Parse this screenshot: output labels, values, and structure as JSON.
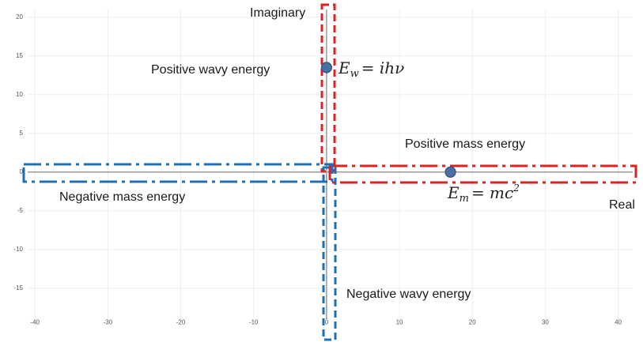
{
  "chart_data": {
    "type": "scatter",
    "x_ticks": [
      -40,
      -30,
      -20,
      -10,
      0,
      10,
      20,
      30,
      40
    ],
    "y_ticks": [
      -15,
      -10,
      -5,
      0,
      5,
      10,
      15,
      20
    ],
    "xlim": [
      -41,
      42
    ],
    "ylim": [
      -19,
      21
    ],
    "grid": true,
    "points": [
      {
        "x": 0,
        "y": 13.5
      },
      {
        "x": 17,
        "y": 0
      }
    ],
    "point_color": "#4a6fa5",
    "axis_labels": {
      "real": "Real",
      "imaginary": "Imaginary"
    },
    "annotations": {
      "positive_wavy": "Positive wavy energy",
      "negative_wavy": "Negative wavy energy",
      "positive_mass": "Positive mass energy",
      "negative_mass": "Negative mass energy"
    },
    "formulas": {
      "wavy": {
        "lhs": "E",
        "sub": "w",
        "rhs": "= ihν"
      },
      "mass": {
        "lhs": "E",
        "sub": "m",
        "rhs": "= mc",
        "sup": "2"
      }
    },
    "colors": {
      "positive_box": "#e02020",
      "negative_box": "#1f6fb4",
      "axis": "#9a9a9a",
      "grid": "#eeeeee"
    }
  }
}
